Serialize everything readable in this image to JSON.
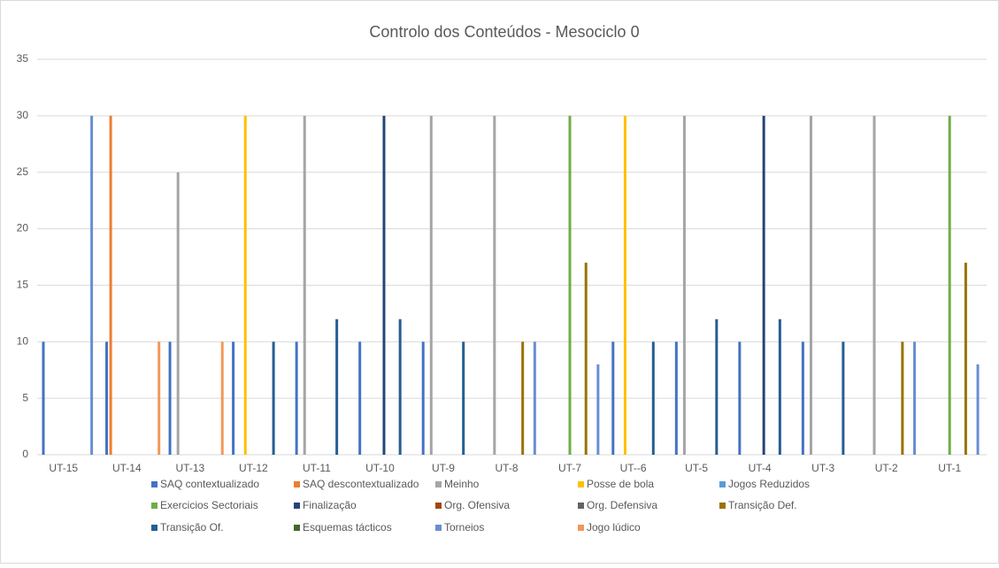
{
  "chart_data": {
    "type": "bar",
    "title": "Controlo dos Conteúdos - Mesociclo 0",
    "categories": [
      "UT-15",
      "UT-14",
      "UT-13",
      "UT-12",
      "UT-11",
      "UT-10",
      "UT-9",
      "UT-8",
      "UT-7",
      "UT--6",
      "UT-5",
      "UT-4",
      "UT-3",
      "UT-2",
      "UT-1"
    ],
    "ylim": [
      0,
      35
    ],
    "yticks": [
      0,
      5,
      10,
      15,
      20,
      25,
      30,
      35
    ],
    "grid": true,
    "legend": "bottom",
    "series": [
      {
        "name": "SAQ contextualizado",
        "color": "#4472c4",
        "values": [
          10,
          10,
          10,
          10,
          10,
          10,
          10,
          0,
          0,
          10,
          10,
          10,
          10,
          0,
          0
        ]
      },
      {
        "name": "SAQ descontextualizado",
        "color": "#ed7d31",
        "values": [
          0,
          30,
          0,
          0,
          0,
          0,
          0,
          0,
          0,
          0,
          0,
          0,
          0,
          0,
          0
        ]
      },
      {
        "name": "Meinho",
        "color": "#a5a5a5",
        "values": [
          0,
          0,
          25,
          0,
          30,
          0,
          30,
          30,
          0,
          0,
          30,
          0,
          30,
          30,
          0
        ]
      },
      {
        "name": "Posse de bola",
        "color": "#ffc000",
        "values": [
          0,
          0,
          0,
          30,
          0,
          0,
          0,
          0,
          0,
          30,
          0,
          0,
          0,
          0,
          0
        ]
      },
      {
        "name": "Jogos Reduzidos",
        "color": "#5b9bd5",
        "values": [
          0,
          0,
          0,
          0,
          0,
          0,
          0,
          0,
          0,
          0,
          0,
          0,
          0,
          0,
          0
        ]
      },
      {
        "name": "Exercicios Sectoriais",
        "color": "#70ad47",
        "values": [
          0,
          0,
          0,
          0,
          0,
          0,
          0,
          0,
          30,
          0,
          0,
          0,
          0,
          0,
          30
        ]
      },
      {
        "name": "Finalização",
        "color": "#264478",
        "values": [
          0,
          0,
          0,
          0,
          0,
          30,
          0,
          0,
          0,
          0,
          0,
          30,
          0,
          0,
          0
        ]
      },
      {
        "name": "Org. Ofensiva",
        "color": "#9e480e",
        "values": [
          0,
          0,
          0,
          0,
          0,
          0,
          0,
          0,
          0,
          0,
          0,
          0,
          0,
          0,
          0
        ]
      },
      {
        "name": "Org. Defensiva",
        "color": "#636363",
        "values": [
          0,
          0,
          0,
          0,
          0,
          0,
          0,
          0,
          0,
          0,
          0,
          0,
          0,
          0,
          0
        ]
      },
      {
        "name": "Transição Def.",
        "color": "#997300",
        "values": [
          0,
          0,
          0,
          0,
          0,
          0,
          0,
          10,
          17,
          0,
          0,
          0,
          0,
          10,
          17
        ]
      },
      {
        "name": "Transição Of.",
        "color": "#255e91",
        "values": [
          0,
          0,
          0,
          10,
          12,
          12,
          10,
          0,
          0,
          10,
          12,
          12,
          10,
          0,
          0
        ]
      },
      {
        "name": "Esquemas tácticos",
        "color": "#43682b",
        "values": [
          0,
          0,
          0,
          0,
          0,
          0,
          0,
          0,
          0,
          0,
          0,
          0,
          0,
          0,
          0
        ]
      },
      {
        "name": "Torneios",
        "color": "#698ed0",
        "values": [
          30,
          0,
          0,
          0,
          0,
          0,
          0,
          10,
          8,
          0,
          0,
          0,
          0,
          10,
          8
        ]
      },
      {
        "name": "Jogo lúdico",
        "color": "#f1975a",
        "values": [
          0,
          10,
          10,
          0,
          0,
          0,
          0,
          0,
          0,
          0,
          0,
          0,
          0,
          0,
          0
        ]
      }
    ]
  }
}
